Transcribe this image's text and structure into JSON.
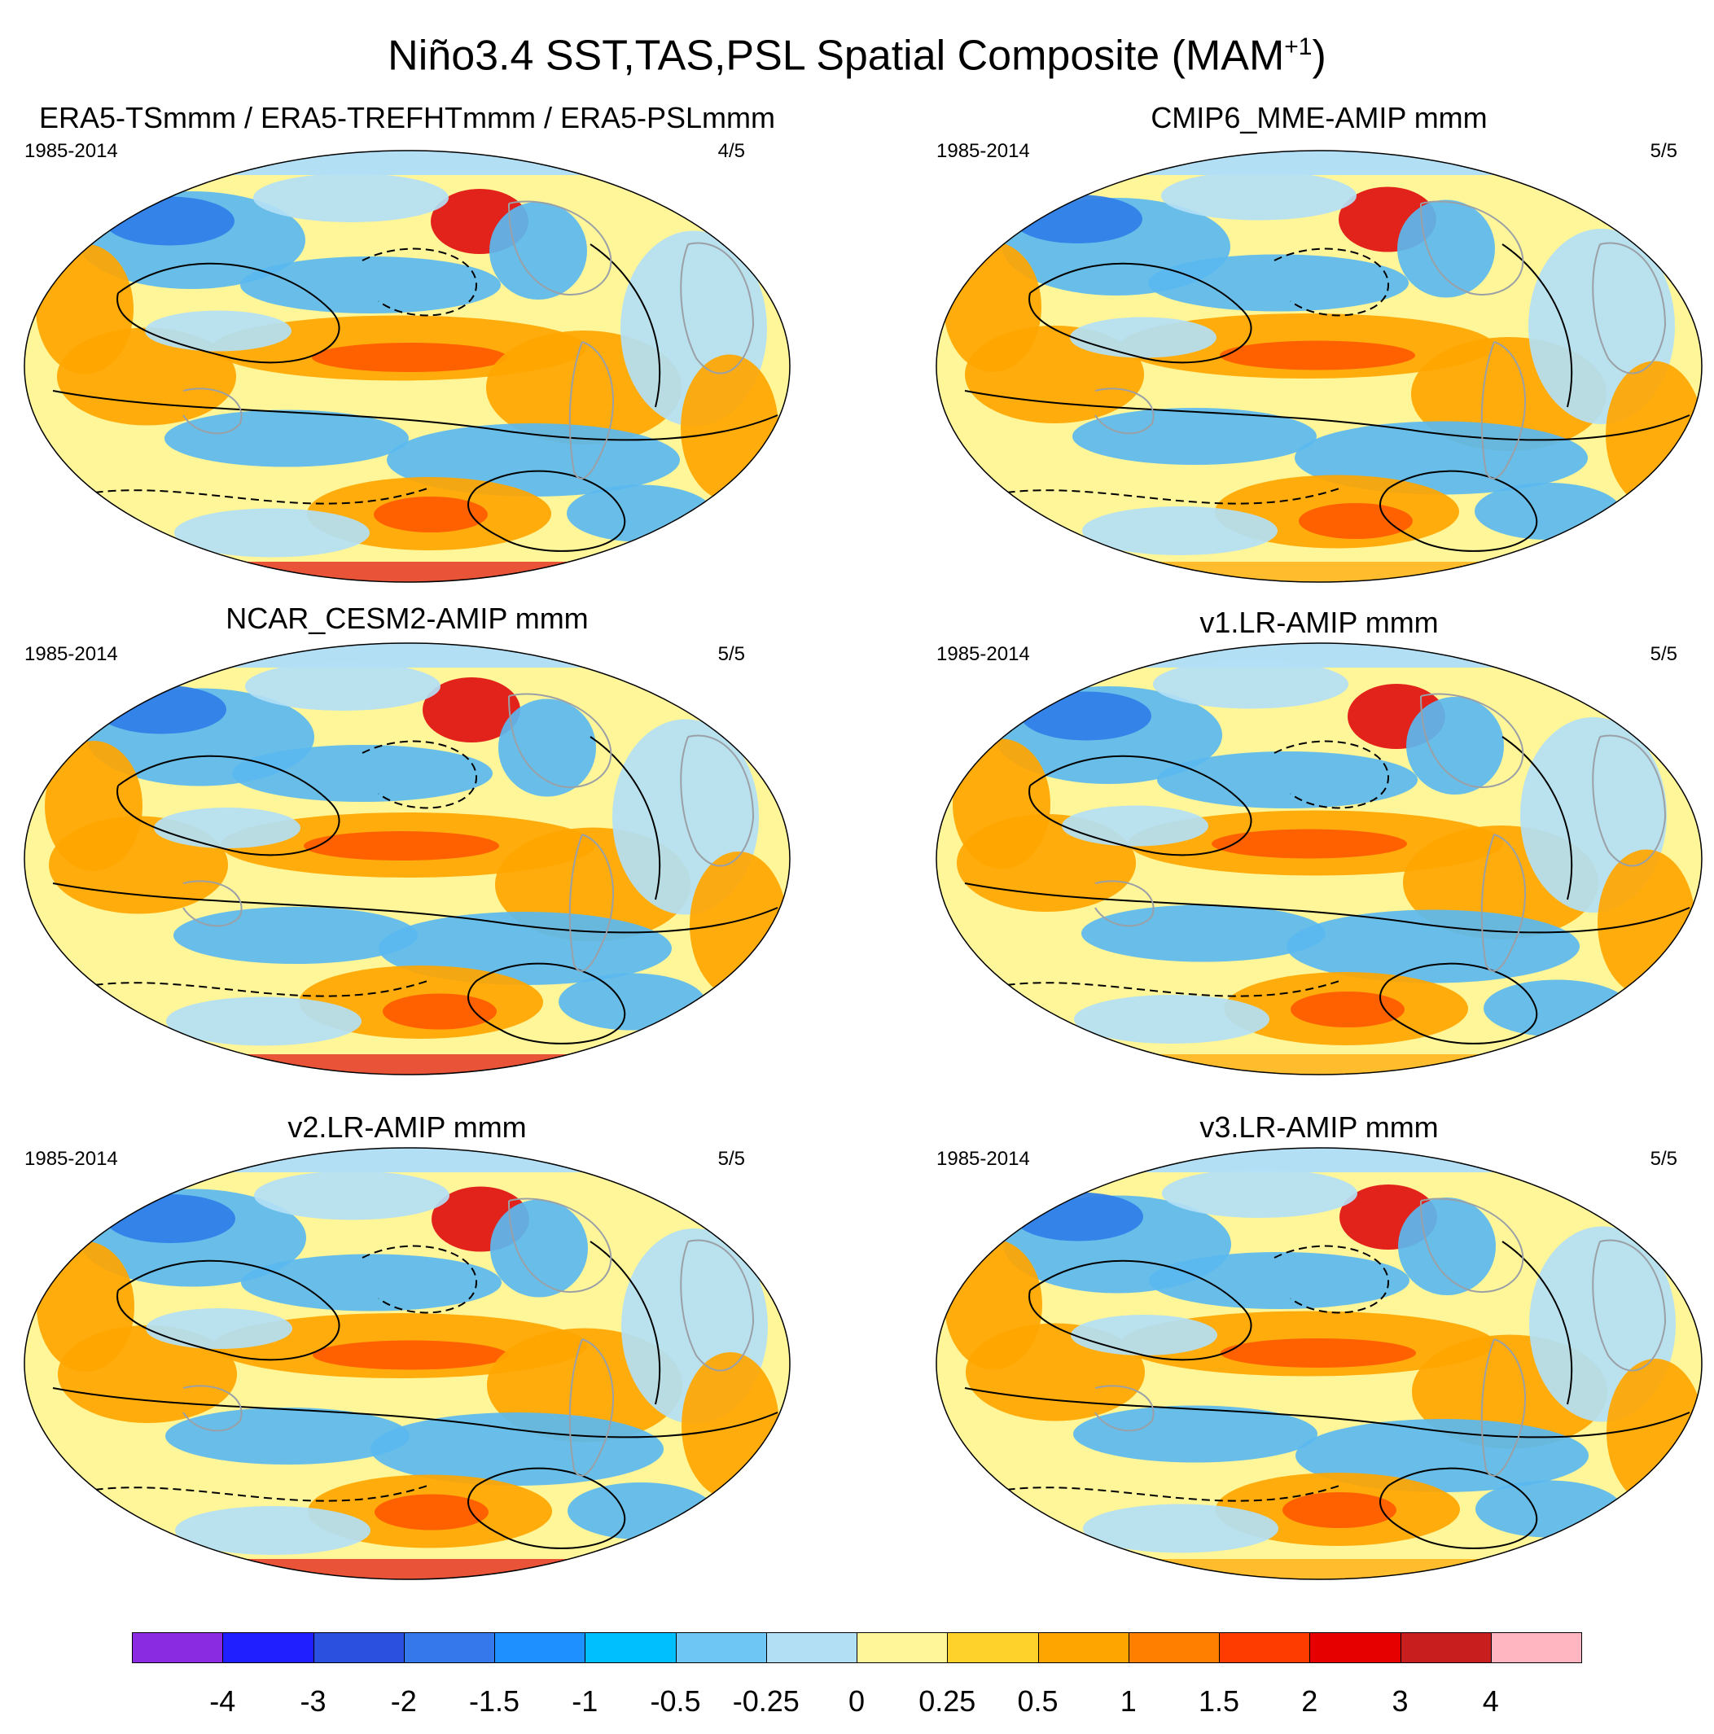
{
  "title": {
    "main": "Niño3.4 SST,TAS,PSL Spatial Composite (MAM",
    "superscript": "+1",
    "close": ")"
  },
  "panels": [
    {
      "title": "ERA5-TSmmm / ERA5-TREFHTmmm / ERA5-PSLmmm",
      "period": "1985-2014",
      "ratio": "4/5"
    },
    {
      "title": "CMIP6_MME-AMIP  mmm",
      "period": "1985-2014",
      "ratio": "5/5"
    },
    {
      "title": "NCAR_CESM2-AMIP  mmm",
      "period": "1985-2014",
      "ratio": "5/5"
    },
    {
      "title": "v1.LR-AMIP  mmm",
      "period": "1985-2014",
      "ratio": "5/5"
    },
    {
      "title": "v2.LR-AMIP  mmm",
      "period": "1985-2014",
      "ratio": "5/5"
    },
    {
      "title": "v3.LR-AMIP  mmm",
      "period": "1985-2014",
      "ratio": "5/5"
    }
  ],
  "colorbar": {
    "colors": [
      "#8a2be2",
      "#1f1fff",
      "#2b50e0",
      "#3578eb",
      "#1e90ff",
      "#00bfff",
      "#6ec6f5",
      "#b3dff5",
      "#fff599",
      "#ffd22b",
      "#ffa500",
      "#ff7f00",
      "#ff3c00",
      "#e60000",
      "#c81e1e",
      "#ffb6c1"
    ],
    "labels": [
      "-4",
      "-3",
      "-2",
      "-1.5",
      "-1",
      "-0.5",
      "-0.25",
      "0",
      "0.25",
      "0.5",
      "1",
      "1.5",
      "2",
      "3",
      "4"
    ]
  },
  "field_colors": {
    "background": "#fff599",
    "cool_light": "#b3dff5",
    "cool": "#5bb8f0",
    "cool_strong": "#2f7ee8",
    "warm": "#ffa500",
    "warm_strong": "#ff5a00",
    "hot": "#e01010",
    "land_outline": "#9aa0a6",
    "contour": "#000000"
  }
}
